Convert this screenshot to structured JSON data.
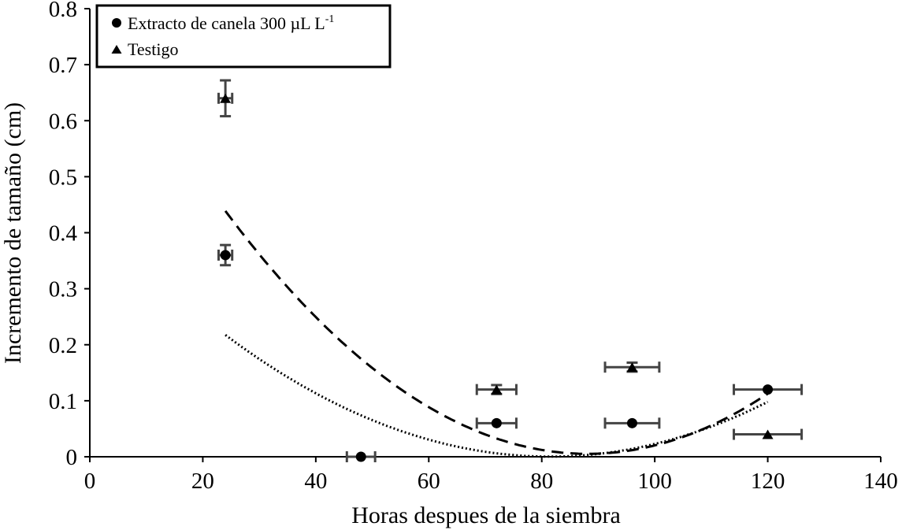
{
  "chart_data": {
    "type": "scatter",
    "title": "",
    "xlabel": "Horas despues de la siembra",
    "ylabel": "Incremento de tamaño (cm)",
    "xlim": [
      0,
      140
    ],
    "ylim": [
      0,
      0.8
    ],
    "x_ticks": [
      0,
      20,
      40,
      60,
      80,
      100,
      120,
      140
    ],
    "y_ticks": [
      0,
      0.1,
      0.2,
      0.3,
      0.4,
      0.5,
      0.6,
      0.7,
      0.8
    ],
    "x_tick_labels": [
      "0",
      "20",
      "40",
      "60",
      "80",
      "100",
      "120",
      "140"
    ],
    "y_tick_labels": [
      "0",
      "0.1",
      "0.2",
      "0.3",
      "0.4",
      "0.5",
      "0.6",
      "0.7",
      "0.8"
    ],
    "grid": false,
    "legend_position": "top-left",
    "series": [
      {
        "name": "Extracto de canela 300 µL L",
        "name_superscript": "-1",
        "marker": "circle",
        "color": "#000000",
        "points": [
          {
            "x": 24,
            "y": 0.36,
            "xerr": 1.2,
            "yerr": 0.018
          },
          {
            "x": 48,
            "y": 0.0,
            "xerr": 2.5,
            "yerr": 0.0
          },
          {
            "x": 72,
            "y": 0.06,
            "xerr": 3.5,
            "yerr": 0.0
          },
          {
            "x": 96,
            "y": 0.06,
            "xerr": 4.8,
            "yerr": 0.0
          },
          {
            "x": 120,
            "y": 0.12,
            "xerr": 6.0,
            "yerr": 0.0
          }
        ],
        "trend": {
          "style": "dotted",
          "type": "quadratic",
          "a": 6.58e-05,
          "b": -0.01072,
          "c": 0.4369,
          "x_range": [
            24,
            120
          ]
        }
      },
      {
        "name": "Testigo",
        "marker": "triangle",
        "color": "#000000",
        "points": [
          {
            "x": 24,
            "y": 0.64,
            "xerr": 1.2,
            "yerr": 0.032
          },
          {
            "x": 72,
            "y": 0.12,
            "xerr": 3.5,
            "yerr": 0.008
          },
          {
            "x": 96,
            "y": 0.16,
            "xerr": 4.8,
            "yerr": 0.008
          },
          {
            "x": 120,
            "y": 0.04,
            "xerr": 6.0,
            "yerr": 0.0
          }
        ],
        "trend": {
          "style": "dashed",
          "type": "quadratic",
          "a": 0.0001055,
          "b": -0.01859,
          "c": 0.8242,
          "x_range": [
            24,
            120
          ]
        }
      }
    ]
  }
}
